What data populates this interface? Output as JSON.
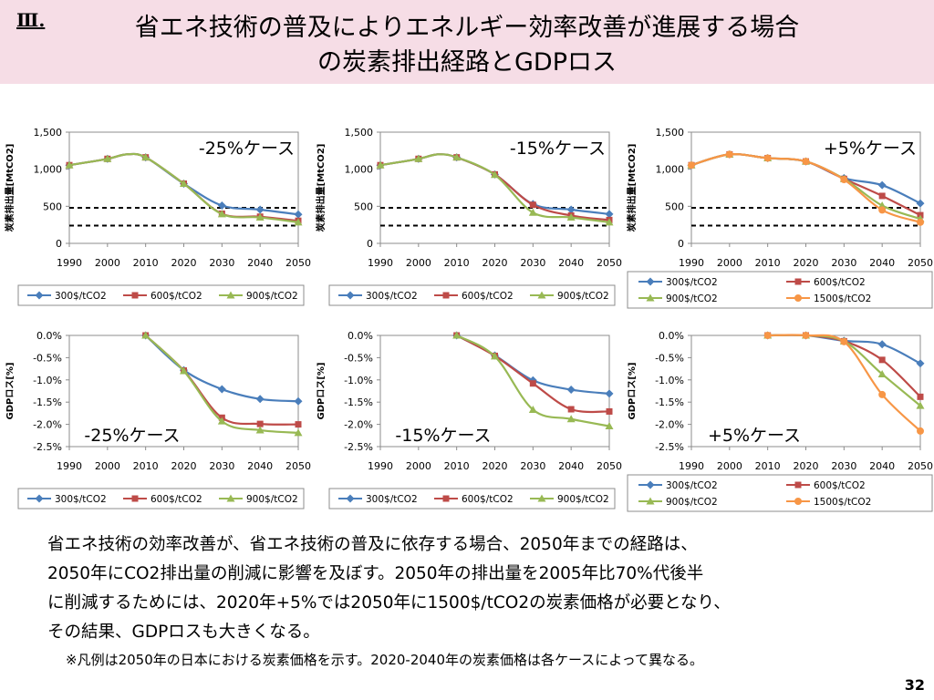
{
  "header": {
    "section_num": "Ⅲ.",
    "title_line1": "省エネ技術の普及によりエネルギー効率改善が進展する場合",
    "title_line2": "の炭素排出経路とGDPロス"
  },
  "colors": {
    "header_bg": "#f6dde6",
    "series_300": "#4a7ebb",
    "series_600": "#be4b48",
    "series_900": "#98b954",
    "series_1500": "#f79646"
  },
  "body": {
    "lines": [
      "省エネ技術の効率改善が、省エネ技術の普及に依存する場合、2050年までの経路は、",
      "2050年にCO2排出量の削減に影響を及ぼす。2050年の排出量を2005年比70%代後半",
      "に削減するためには、2020年+5%では2050年に1500$/tCO2の炭素価格が必要となり、",
      "その結果、GDPロスも大きくなる。"
    ],
    "footnote": "※凡例は2050年の日本における炭素価格を示す。2020-2040年の炭素価格は各ケースによって異なる。",
    "page_number": "32"
  },
  "chart_data": [
    {
      "type": "line",
      "case_label": "-25%ケース",
      "ylabel": "炭素排出量[MtCO2]",
      "x": [
        1990,
        2000,
        2005,
        2010,
        2020,
        2030,
        2040,
        2050
      ],
      "ylim": [
        0,
        1500
      ],
      "yticks": [
        0,
        500,
        1000,
        1500
      ],
      "yticklabels": [
        "0",
        "500",
        "1,000",
        "1,500"
      ],
      "xticklabels": [
        "1990",
        "2000",
        "2010",
        "2020",
        "2030",
        "2040",
        "2050"
      ],
      "reference_lines": [
        480,
        240
      ],
      "series": [
        {
          "name": "300$/tCO2",
          "values": [
            1055,
            1140,
            1200,
            1160,
            805,
            510,
            455,
            390
          ]
        },
        {
          "name": "600$/tCO2",
          "values": [
            1055,
            1140,
            1200,
            1160,
            805,
            400,
            360,
            305
          ]
        },
        {
          "name": "900$/tCO2",
          "values": [
            1055,
            1140,
            1200,
            1160,
            805,
            395,
            350,
            285
          ]
        }
      ]
    },
    {
      "type": "line",
      "case_label": "-15%ケース",
      "ylabel": "炭素排出量[MtCO2]",
      "x": [
        1990,
        2000,
        2005,
        2010,
        2020,
        2030,
        2040,
        2050
      ],
      "ylim": [
        0,
        1500
      ],
      "yticks": [
        0,
        500,
        1000,
        1500
      ],
      "yticklabels": [
        "0",
        "500",
        "1,000",
        "1,500"
      ],
      "xticklabels": [
        "1990",
        "2000",
        "2010",
        "2020",
        "2030",
        "2040",
        "2050"
      ],
      "reference_lines": [
        480,
        240
      ],
      "series": [
        {
          "name": "300$/tCO2",
          "values": [
            1055,
            1140,
            1200,
            1160,
            930,
            530,
            455,
            395
          ]
        },
        {
          "name": "600$/tCO2",
          "values": [
            1055,
            1140,
            1200,
            1160,
            930,
            520,
            375,
            315
          ]
        },
        {
          "name": "900$/tCO2",
          "values": [
            1055,
            1140,
            1200,
            1160,
            925,
            415,
            350,
            285
          ]
        }
      ]
    },
    {
      "type": "line",
      "case_label": "+5%ケース",
      "ylabel": "炭素排出量[MtCO2]",
      "x": [
        1990,
        2000,
        2010,
        2020,
        2030,
        2040,
        2050
      ],
      "ylim": [
        0,
        1500
      ],
      "yticks": [
        0,
        500,
        1000,
        1500
      ],
      "yticklabels": [
        "0",
        "500",
        "1,000",
        "1,500"
      ],
      "xticklabels": [
        "1990",
        "2000",
        "2010",
        "2020",
        "2030",
        "2040",
        "2050"
      ],
      "reference_lines": [
        480,
        240
      ],
      "legend_columns": 2,
      "series": [
        {
          "name": "300$/tCO2",
          "values": [
            1055,
            1200,
            1150,
            1105,
            880,
            785,
            540
          ]
        },
        {
          "name": "600$/tCO2",
          "values": [
            1055,
            1200,
            1150,
            1105,
            870,
            640,
            380
          ]
        },
        {
          "name": "900$/tCO2",
          "values": [
            1055,
            1200,
            1150,
            1105,
            870,
            510,
            330
          ]
        },
        {
          "name": "1500$/tCO2",
          "values": [
            1055,
            1200,
            1150,
            1105,
            860,
            450,
            285
          ]
        }
      ]
    },
    {
      "type": "line",
      "case_label": "-25%ケース",
      "ylabel": "GDPロス[%]",
      "x": [
        2010,
        2020,
        2030,
        2040,
        2050
      ],
      "xlim": [
        1990,
        2050
      ],
      "ylim": [
        -2.5,
        0
      ],
      "yticks": [
        0,
        -0.5,
        -1.0,
        -1.5,
        -2.0,
        -2.5
      ],
      "yticklabels": [
        "0.0%",
        "-0.5%",
        "-1.0%",
        "-1.5%",
        "-2.0%",
        "-2.5%"
      ],
      "xticklabels": [
        "1990",
        "2000",
        "2010",
        "2020",
        "2030",
        "2040",
        "2050"
      ],
      "series": [
        {
          "name": "300$/tCO2",
          "values": [
            0.0,
            -0.78,
            -1.21,
            -1.43,
            -1.48
          ]
        },
        {
          "name": "600$/tCO2",
          "values": [
            0.0,
            -0.79,
            -1.85,
            -1.99,
            -2.0
          ]
        },
        {
          "name": "900$/tCO2",
          "values": [
            0.0,
            -0.8,
            -1.93,
            -2.13,
            -2.19
          ]
        }
      ]
    },
    {
      "type": "line",
      "case_label": "-15%ケース",
      "ylabel": "GDPロス[%]",
      "x": [
        2010,
        2020,
        2030,
        2040,
        2050
      ],
      "xlim": [
        1990,
        2050
      ],
      "ylim": [
        -2.5,
        0
      ],
      "yticks": [
        0,
        -0.5,
        -1.0,
        -1.5,
        -2.0,
        -2.5
      ],
      "yticklabels": [
        "0.0%",
        "-0.5%",
        "-1.0%",
        "-1.5%",
        "-2.0%",
        "-2.5%"
      ],
      "xticklabels": [
        "1990",
        "2000",
        "2010",
        "2020",
        "2030",
        "2040",
        "2050"
      ],
      "series": [
        {
          "name": "300$/tCO2",
          "values": [
            0.0,
            -0.45,
            -1.01,
            -1.22,
            -1.31
          ]
        },
        {
          "name": "600$/tCO2",
          "values": [
            0.0,
            -0.46,
            -1.08,
            -1.66,
            -1.71
          ]
        },
        {
          "name": "900$/tCO2",
          "values": [
            0.0,
            -0.47,
            -1.67,
            -1.88,
            -2.04
          ]
        }
      ]
    },
    {
      "type": "line",
      "case_label": "+5%ケース",
      "ylabel": "GDPロス[%]",
      "x": [
        2010,
        2020,
        2030,
        2040,
        2050
      ],
      "xlim": [
        1990,
        2050
      ],
      "ylim": [
        -2.5,
        0
      ],
      "yticks": [
        0,
        -0.5,
        -1.0,
        -1.5,
        -2.0,
        -2.5
      ],
      "yticklabels": [
        "0.0%",
        "-0.5%",
        "-1.0%",
        "-1.5%",
        "-2.0%",
        "-2.5%"
      ],
      "xticklabels": [
        "1990",
        "2000",
        "2010",
        "2020",
        "2030",
        "2040",
        "2050"
      ],
      "legend_columns": 2,
      "series": [
        {
          "name": "300$/tCO2",
          "values": [
            0.0,
            0.0,
            -0.12,
            -0.2,
            -0.63
          ]
        },
        {
          "name": "600$/tCO2",
          "values": [
            0.0,
            0.0,
            -0.13,
            -0.55,
            -1.38
          ]
        },
        {
          "name": "900$/tCO2",
          "values": [
            0.0,
            0.0,
            -0.13,
            -0.87,
            -1.58
          ]
        },
        {
          "name": "1500$/tCO2",
          "values": [
            0.0,
            0.0,
            -0.14,
            -1.33,
            -2.15
          ]
        }
      ]
    }
  ]
}
